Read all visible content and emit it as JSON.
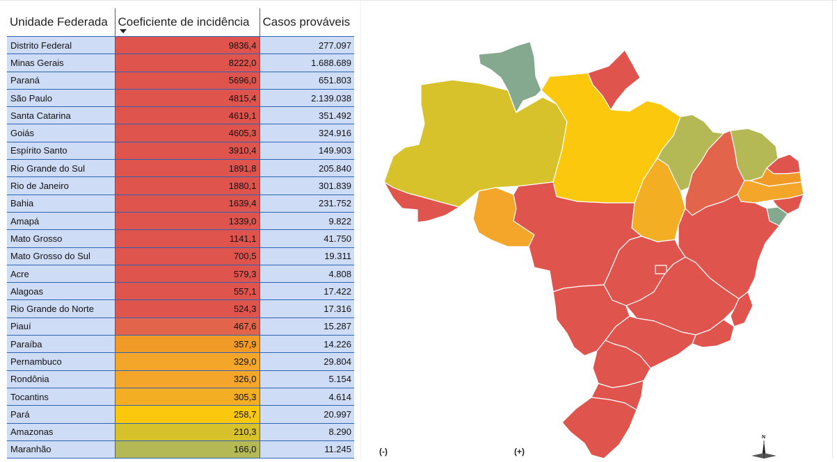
{
  "table": {
    "headers": [
      "Unidade Federada",
      "Coeficiente de incidência",
      "Casos prováveis"
    ],
    "rows": [
      {
        "name": "Distrito Federal",
        "coef": "9836,4",
        "cases": "277.097",
        "color": "#e0544e"
      },
      {
        "name": "Minas Gerais",
        "coef": "8222,0",
        "cases": "1.688.689",
        "color": "#e0544e"
      },
      {
        "name": "Paraná",
        "coef": "5696,0",
        "cases": "651.803",
        "color": "#e0544e"
      },
      {
        "name": "São Paulo",
        "coef": "4815,4",
        "cases": "2.139.038",
        "color": "#e0544e"
      },
      {
        "name": "Santa Catarina",
        "coef": "4619,1",
        "cases": "351.492",
        "color": "#e0544e"
      },
      {
        "name": "Goiás",
        "coef": "4605,3",
        "cases": "324.916",
        "color": "#e0544e"
      },
      {
        "name": "Espírito Santo",
        "coef": "3910,4",
        "cases": "149.903",
        "color": "#e0544e"
      },
      {
        "name": "Rio Grande do Sul",
        "coef": "1891,8",
        "cases": "205.840",
        "color": "#e0544e"
      },
      {
        "name": "Rio de Janeiro",
        "coef": "1880,1",
        "cases": "301.839",
        "color": "#e0544e"
      },
      {
        "name": "Bahia",
        "coef": "1639,4",
        "cases": "231.752",
        "color": "#e0544e"
      },
      {
        "name": "Amapá",
        "coef": "1339,0",
        "cases": "9.822",
        "color": "#e0544e"
      },
      {
        "name": "Mato Grosso",
        "coef": "1141,1",
        "cases": "41.750",
        "color": "#e0544e"
      },
      {
        "name": "Mato Grosso do Sul",
        "coef": "700,5",
        "cases": "19.311",
        "color": "#e0544e"
      },
      {
        "name": "Acre",
        "coef": "579,3",
        "cases": "4.808",
        "color": "#e0544e"
      },
      {
        "name": "Alagoas",
        "coef": "557,1",
        "cases": "17.422",
        "color": "#e0544e"
      },
      {
        "name": "Rio Grande do Norte",
        "coef": "524,3",
        "cases": "17.316",
        "color": "#e0544e"
      },
      {
        "name": "Piauí",
        "coef": "467,6",
        "cases": "15.287",
        "color": "#e2644a"
      },
      {
        "name": "Paraíba",
        "coef": "357,9",
        "cases": "14.226",
        "color": "#f09a28"
      },
      {
        "name": "Pernambuco",
        "coef": "329,0",
        "cases": "29.804",
        "color": "#f3a62a"
      },
      {
        "name": "Rondônia",
        "coef": "326,0",
        "cases": "5.154",
        "color": "#f3a62a"
      },
      {
        "name": "Tocantins",
        "coef": "305,3",
        "cases": "4.614",
        "color": "#f3ae24"
      },
      {
        "name": "Pará",
        "coef": "258,7",
        "cases": "20.997",
        "color": "#fbc80e"
      },
      {
        "name": "Amazonas",
        "coef": "210,3",
        "cases": "8.290",
        "color": "#d8c22c"
      },
      {
        "name": "Maranhão",
        "coef": "166,0",
        "cases": "11.245",
        "color": "#b4b855"
      }
    ]
  },
  "legend": {
    "low": "(-)",
    "high": "(+)"
  },
  "compass": {
    "north": "N"
  },
  "map": {
    "colors": {
      "red": "#e0544e",
      "orange_red": "#e2644a",
      "orange": "#f3a62a",
      "yellow": "#fbc80e",
      "olive": "#d8c22c",
      "greenish": "#b4b855",
      "teal": "#84a98e"
    }
  }
}
